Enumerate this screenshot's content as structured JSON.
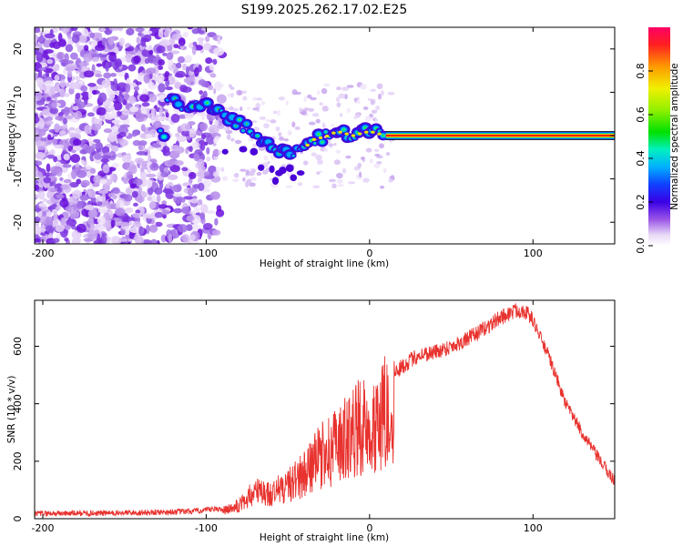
{
  "title": "S199.2025.262.17.02.E25",
  "chart_data": [
    {
      "type": "heatmap",
      "name": "spectrogram",
      "xlabel": "Height of straight line (km)",
      "ylabel": "Frequency (Hz)",
      "xlim": [
        -205,
        150
      ],
      "ylim": [
        -25,
        25
      ],
      "xticks": [
        -200,
        -100,
        0,
        100
      ],
      "yticks": [
        -20,
        -10,
        0,
        10,
        20
      ],
      "colorbar": {
        "label": "Normalized spectral amplitude",
        "range": [
          0,
          1
        ],
        "ticks": [
          "0.0",
          "0.2",
          "0.4",
          "0.6",
          "0.8"
        ]
      },
      "ridge": {
        "description_points": [
          {
            "x": -125,
            "f": 8
          },
          {
            "x": -110,
            "f": 7
          },
          {
            "x": -100,
            "f": 7
          },
          {
            "x": -90,
            "f": 5
          },
          {
            "x": -80,
            "f": 3
          },
          {
            "x": -70,
            "f": 0
          },
          {
            "x": -60,
            "f": -3
          },
          {
            "x": -50,
            "f": -4
          },
          {
            "x": -40,
            "f": -3
          },
          {
            "x": -35,
            "f": -1
          },
          {
            "x": -25,
            "f": 0
          },
          {
            "x": -20,
            "f": 1
          },
          {
            "x": -10,
            "f": 0
          },
          {
            "x": 0,
            "f": 1
          },
          {
            "x": 10,
            "f": 0
          },
          {
            "x": 150,
            "f": 0
          }
        ],
        "constant_from_km": 10,
        "constant_value_hz": 0
      }
    },
    {
      "type": "line",
      "name": "snr",
      "xlabel": "Height of straight line (km)",
      "ylabel": "SNR (10 * v/v)",
      "xlim": [
        -205,
        150
      ],
      "ylim": [
        0,
        760
      ],
      "xticks": [
        -200,
        -100,
        0,
        100
      ],
      "yticks": [
        0,
        200,
        400,
        600
      ],
      "color": "#e8322e",
      "envelope": [
        {
          "x": -205,
          "y": 18
        },
        {
          "x": -150,
          "y": 20
        },
        {
          "x": -110,
          "y": 25
        },
        {
          "x": -90,
          "y": 35
        },
        {
          "x": -80,
          "y": 60
        },
        {
          "x": -70,
          "y": 120
        },
        {
          "x": -60,
          "y": 110
        },
        {
          "x": -50,
          "y": 150
        },
        {
          "x": -40,
          "y": 200
        },
        {
          "x": -30,
          "y": 280
        },
        {
          "x": -20,
          "y": 320
        },
        {
          "x": -10,
          "y": 400
        },
        {
          "x": 0,
          "y": 420
        },
        {
          "x": 10,
          "y": 480
        },
        {
          "x": 20,
          "y": 530
        },
        {
          "x": 30,
          "y": 570
        },
        {
          "x": 40,
          "y": 580
        },
        {
          "x": 50,
          "y": 600
        },
        {
          "x": 60,
          "y": 625
        },
        {
          "x": 70,
          "y": 660
        },
        {
          "x": 80,
          "y": 700
        },
        {
          "x": 90,
          "y": 725
        },
        {
          "x": 95,
          "y": 725
        },
        {
          "x": 100,
          "y": 690
        },
        {
          "x": 110,
          "y": 560
        },
        {
          "x": 120,
          "y": 400
        },
        {
          "x": 130,
          "y": 300
        },
        {
          "x": 140,
          "y": 210
        },
        {
          "x": 150,
          "y": 130
        }
      ]
    }
  ]
}
